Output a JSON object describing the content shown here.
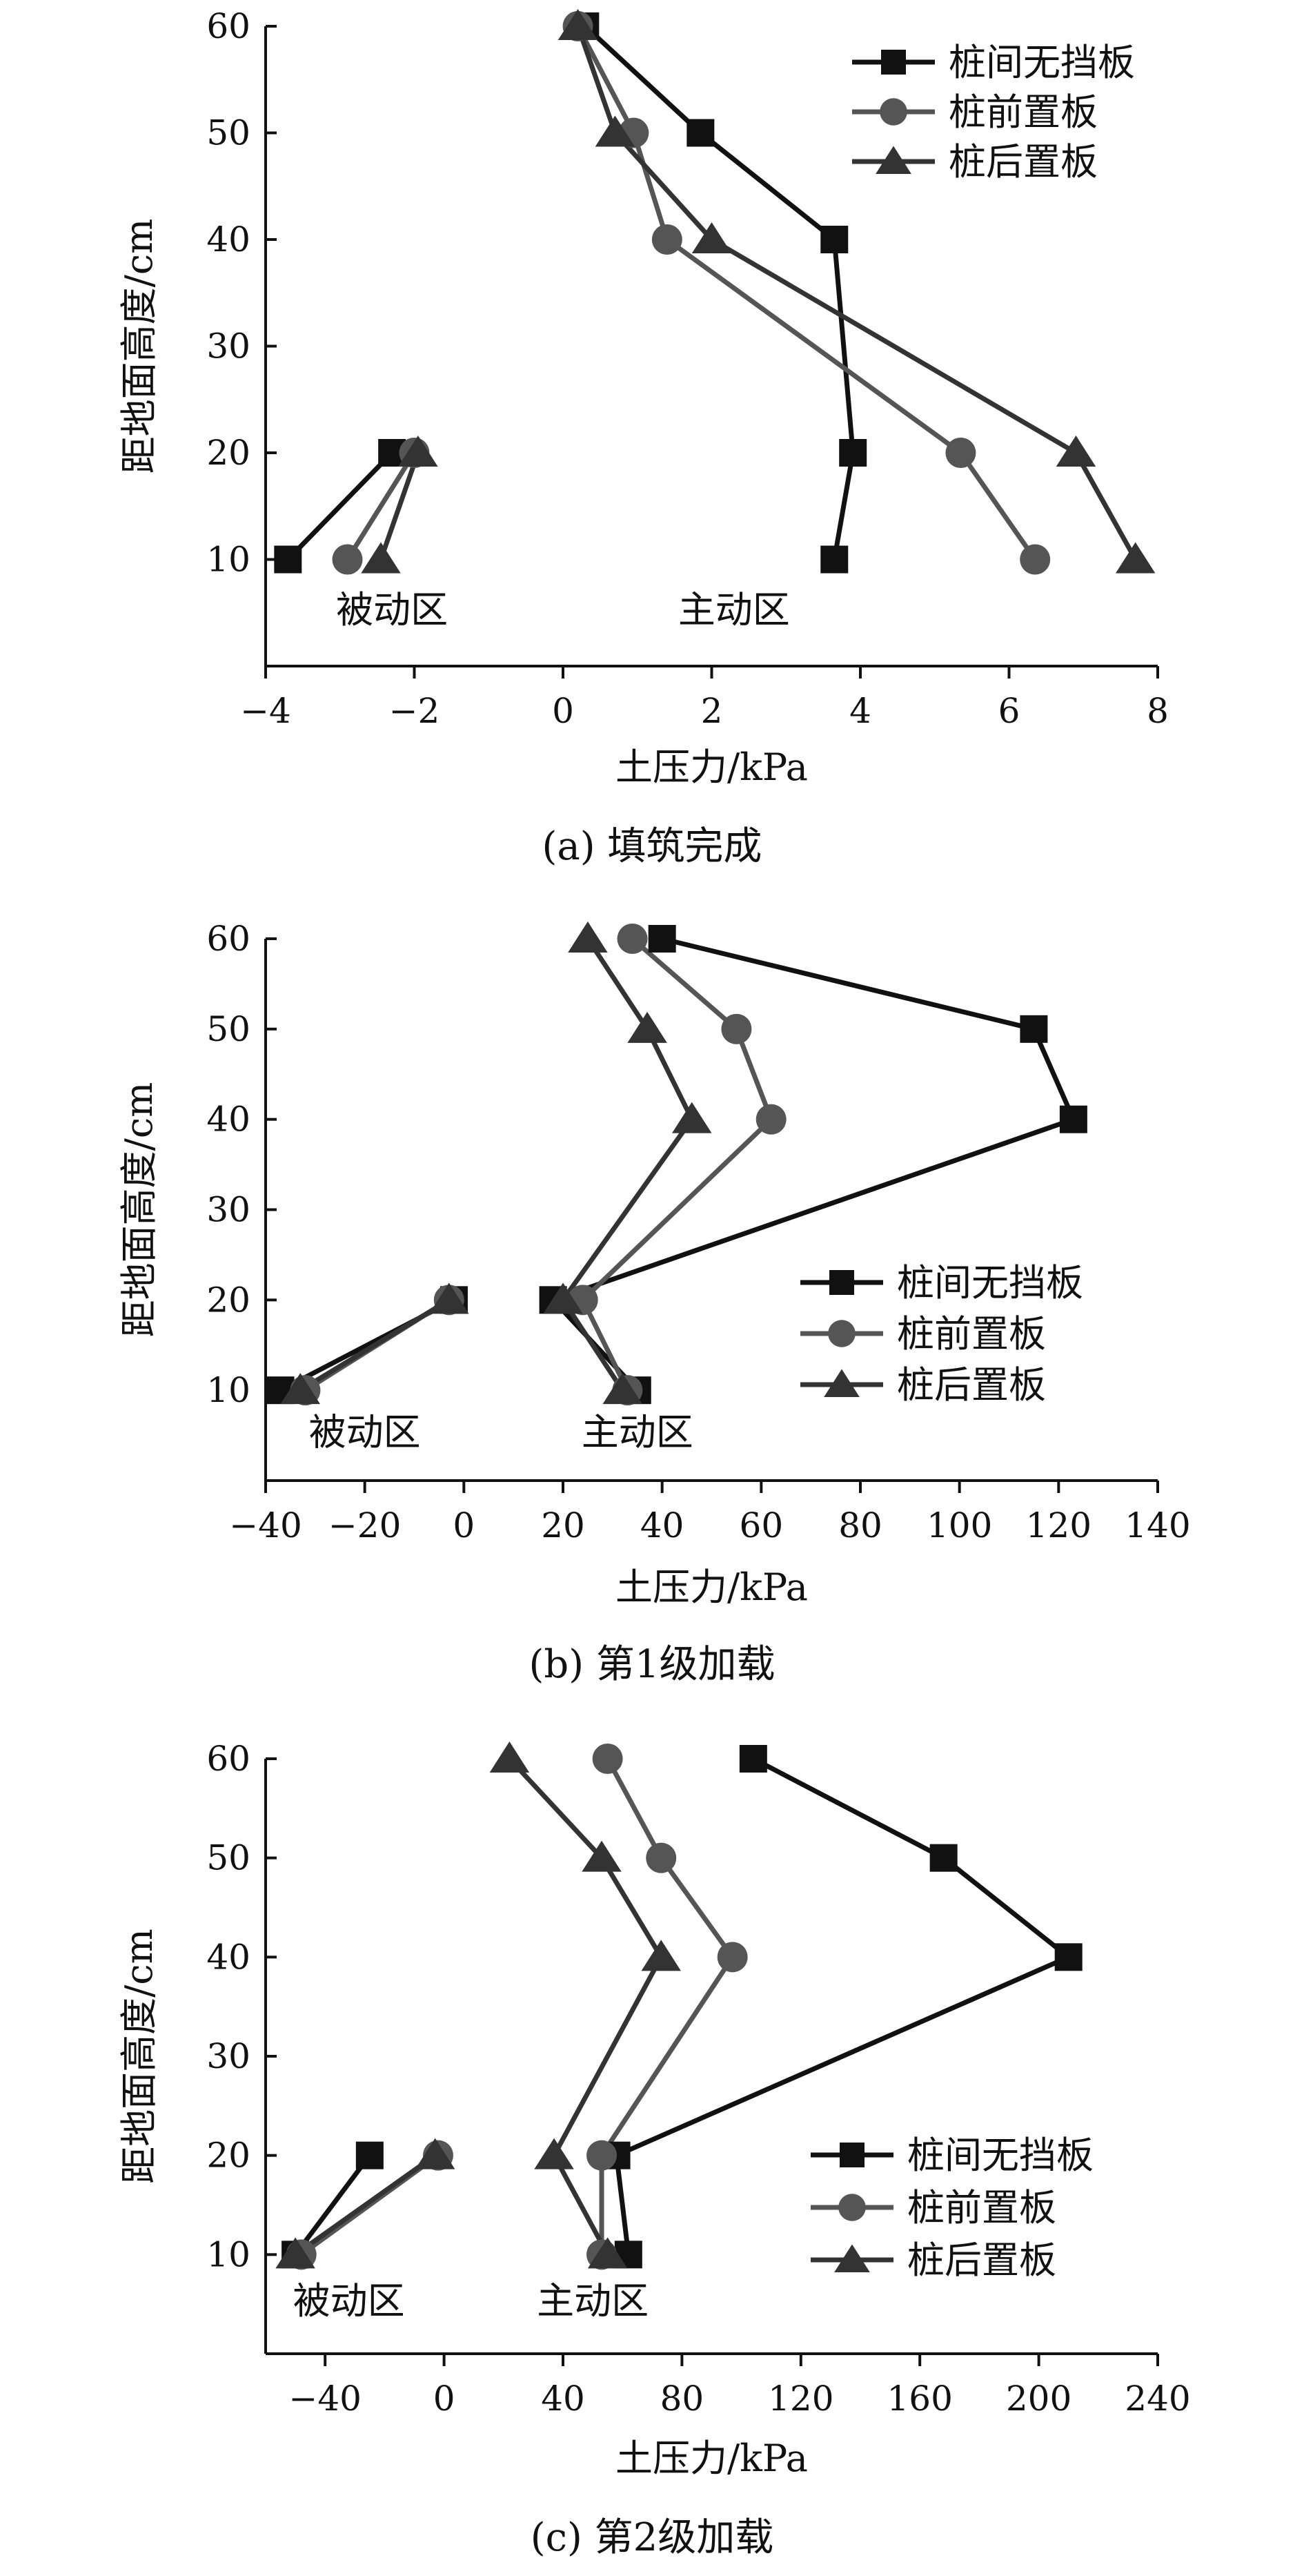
{
  "chart_data": [
    {
      "type": "line",
      "caption": "(a) 填筑完成",
      "xlabel": "土压力/kPa",
      "ylabel": "距地面高度/cm",
      "xlim": [
        -4,
        8
      ],
      "xticks": [
        -4,
        -2,
        0,
        2,
        4,
        6,
        8
      ],
      "xtick_labels": [
        "−4",
        "−2",
        "0",
        "2",
        "4",
        "6",
        "8"
      ],
      "ylim": [
        0,
        60
      ],
      "yticks": [
        10,
        20,
        30,
        40,
        50,
        60
      ],
      "ytick_labels": [
        "10",
        "20",
        "30",
        "40",
        "50",
        "60"
      ],
      "legend_position": "top-right",
      "annotations": [
        {
          "text": "被动区",
          "x": -2.3,
          "y": 5
        },
        {
          "text": "主动区",
          "x": 2.3,
          "y": 5
        }
      ],
      "series": [
        {
          "name": "桩间无挡板",
          "marker": "square",
          "color": "#111111",
          "active": [
            {
              "x": 3.65,
              "y": 10
            },
            {
              "x": 3.9,
              "y": 20
            },
            {
              "x": 3.65,
              "y": 40
            },
            {
              "x": 1.85,
              "y": 50
            },
            {
              "x": 0.3,
              "y": 60
            }
          ],
          "passive": [
            {
              "x": -3.7,
              "y": 10
            },
            {
              "x": -2.3,
              "y": 20
            }
          ]
        },
        {
          "name": "桩前置板",
          "marker": "circle",
          "color": "#555555",
          "active": [
            {
              "x": 6.35,
              "y": 10
            },
            {
              "x": 5.35,
              "y": 20
            },
            {
              "x": 1.4,
              "y": 40
            },
            {
              "x": 0.95,
              "y": 50
            },
            {
              "x": 0.2,
              "y": 60
            }
          ],
          "passive": [
            {
              "x": -2.9,
              "y": 10
            },
            {
              "x": -2.0,
              "y": 20
            }
          ]
        },
        {
          "name": "桩后置板",
          "marker": "triangle",
          "color": "#333333",
          "active": [
            {
              "x": 7.7,
              "y": 10
            },
            {
              "x": 6.9,
              "y": 20
            },
            {
              "x": 2.0,
              "y": 40
            },
            {
              "x": 0.7,
              "y": 50
            },
            {
              "x": 0.2,
              "y": 60
            }
          ],
          "passive": [
            {
              "x": -2.45,
              "y": 10
            },
            {
              "x": -1.95,
              "y": 20
            }
          ]
        }
      ]
    },
    {
      "type": "line",
      "caption": "(b) 第1级加载",
      "xlabel": "土压力/kPa",
      "ylabel": "距地面高度/cm",
      "xlim": [
        -40,
        140
      ],
      "xticks": [
        -40,
        -20,
        0,
        20,
        40,
        60,
        80,
        100,
        120,
        140
      ],
      "xtick_labels": [
        "−40",
        "−20",
        "0",
        "20",
        "40",
        "60",
        "80",
        "100",
        "120",
        "140"
      ],
      "ylim": [
        0,
        60
      ],
      "yticks": [
        10,
        20,
        30,
        40,
        50,
        60
      ],
      "ytick_labels": [
        "10",
        "20",
        "30",
        "40",
        "50",
        "60"
      ],
      "legend_position": "bottom-right",
      "annotations": [
        {
          "text": "被动区",
          "x": -20,
          "y": 5
        },
        {
          "text": "主动区",
          "x": 35,
          "y": 5
        }
      ],
      "series": [
        {
          "name": "桩间无挡板",
          "marker": "square",
          "color": "#111111",
          "active": [
            {
              "x": 35,
              "y": 10
            },
            {
              "x": 18,
              "y": 20
            },
            {
              "x": 123,
              "y": 40
            },
            {
              "x": 115,
              "y": 50
            },
            {
              "x": 40,
              "y": 60
            }
          ],
          "passive": [
            {
              "x": -37,
              "y": 10
            },
            {
              "x": -2,
              "y": 20
            }
          ]
        },
        {
          "name": "桩前置板",
          "marker": "circle",
          "color": "#555555",
          "active": [
            {
              "x": 33,
              "y": 10
            },
            {
              "x": 24,
              "y": 20
            },
            {
              "x": 62,
              "y": 40
            },
            {
              "x": 55,
              "y": 50
            },
            {
              "x": 34,
              "y": 60
            }
          ],
          "passive": [
            {
              "x": -32,
              "y": 10
            },
            {
              "x": -3,
              "y": 20
            }
          ]
        },
        {
          "name": "桩后置板",
          "marker": "triangle",
          "color": "#333333",
          "active": [
            {
              "x": 32,
              "y": 10
            },
            {
              "x": 20,
              "y": 20
            },
            {
              "x": 46,
              "y": 40
            },
            {
              "x": 37,
              "y": 50
            },
            {
              "x": 25,
              "y": 60
            }
          ],
          "passive": [
            {
              "x": -33,
              "y": 10
            },
            {
              "x": -3,
              "y": 20
            }
          ]
        }
      ]
    },
    {
      "type": "line",
      "caption": "(c) 第2级加载",
      "xlabel": "土压力/kPa",
      "ylabel": "距地面高度/cm",
      "xlim": [
        -60,
        240
      ],
      "xticks": [
        -40,
        0,
        40,
        80,
        120,
        160,
        200,
        240
      ],
      "xtick_labels": [
        "−40",
        "0",
        "40",
        "80",
        "120",
        "160",
        "200",
        "240"
      ],
      "ylim": [
        0,
        60
      ],
      "yticks": [
        10,
        20,
        30,
        40,
        50,
        60
      ],
      "ytick_labels": [
        "10",
        "20",
        "30",
        "40",
        "50",
        "60"
      ],
      "legend_position": "bottom-right",
      "annotations": [
        {
          "text": "被动区",
          "x": -32,
          "y": 5
        },
        {
          "text": "主动区",
          "x": 50,
          "y": 5
        }
      ],
      "series": [
        {
          "name": "桩间无挡板",
          "marker": "square",
          "color": "#111111",
          "active": [
            {
              "x": 62,
              "y": 10
            },
            {
              "x": 58,
              "y": 20
            },
            {
              "x": 210,
              "y": 40
            },
            {
              "x": 168,
              "y": 50
            },
            {
              "x": 104,
              "y": 60
            }
          ],
          "passive": [
            {
              "x": -50,
              "y": 10
            },
            {
              "x": -25,
              "y": 20
            }
          ]
        },
        {
          "name": "桩前置板",
          "marker": "circle",
          "color": "#555555",
          "active": [
            {
              "x": 53,
              "y": 10
            },
            {
              "x": 53,
              "y": 20
            },
            {
              "x": 97,
              "y": 40
            },
            {
              "x": 73,
              "y": 50
            },
            {
              "x": 55,
              "y": 60
            }
          ],
          "passive": [
            {
              "x": -48,
              "y": 10
            },
            {
              "x": -2,
              "y": 20
            }
          ]
        },
        {
          "name": "桩后置板",
          "marker": "triangle",
          "color": "#333333",
          "active": [
            {
              "x": 55,
              "y": 10
            },
            {
              "x": 37,
              "y": 20
            },
            {
              "x": 73,
              "y": 40
            },
            {
              "x": 53,
              "y": 50
            },
            {
              "x": 22,
              "y": 60
            }
          ],
          "passive": [
            {
              "x": -50,
              "y": 10
            },
            {
              "x": -3,
              "y": 20
            }
          ]
        }
      ]
    }
  ]
}
